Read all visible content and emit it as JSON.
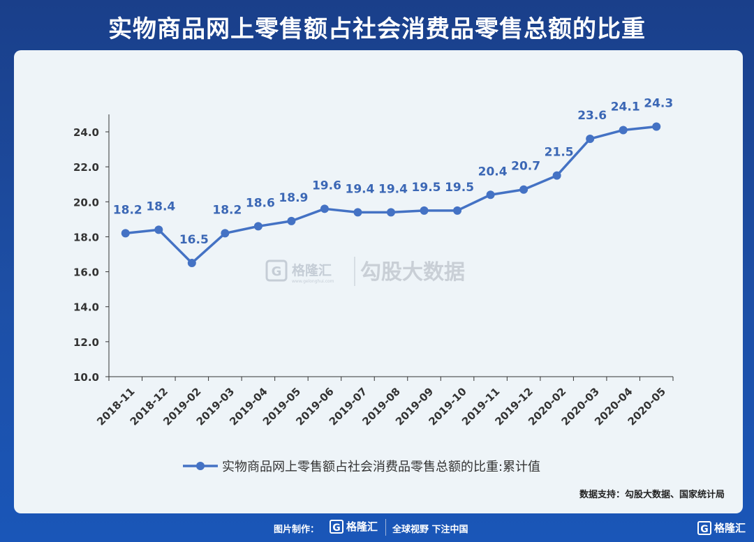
{
  "title": "实物商品网上零售额占社会消费品零售总额的比重",
  "watermark": {
    "brand": "格隆汇",
    "brand_url": "www.gelonghui.com",
    "product": "勾股大数据"
  },
  "source": "数据支持：勾股大数据、国家统计局",
  "footer": {
    "label": "图片制作：",
    "logo_text": "格隆汇",
    "slogan": "全球视野 下注中国"
  },
  "corner_logo": "格隆汇",
  "colors": {
    "series": "#4472c4",
    "label": "#3b67b5",
    "axis": "#333333"
  },
  "chart_data": {
    "type": "line",
    "categories": [
      "2018-11",
      "2018-12",
      "2019-02",
      "2019-03",
      "2019-04",
      "2019-05",
      "2019-06",
      "2019-07",
      "2019-08",
      "2019-09",
      "2019-10",
      "2019-11",
      "2019-12",
      "2020-02",
      "2020-03",
      "2020-04",
      "2020-05"
    ],
    "series": [
      {
        "name": "实物商品网上零售额占社会消费品零售总额的比重:累计值",
        "values": [
          18.2,
          18.4,
          16.5,
          18.2,
          18.6,
          18.9,
          19.6,
          19.4,
          19.4,
          19.5,
          19.5,
          20.4,
          20.7,
          21.5,
          23.6,
          24.1,
          24.3
        ]
      }
    ],
    "ylim": [
      10.0,
      24.0
    ],
    "yticks": [
      "10.0",
      "12.0",
      "14.0",
      "16.0",
      "18.0",
      "20.0",
      "22.0",
      "24.0"
    ],
    "legend_position": "bottom",
    "grid": false
  }
}
